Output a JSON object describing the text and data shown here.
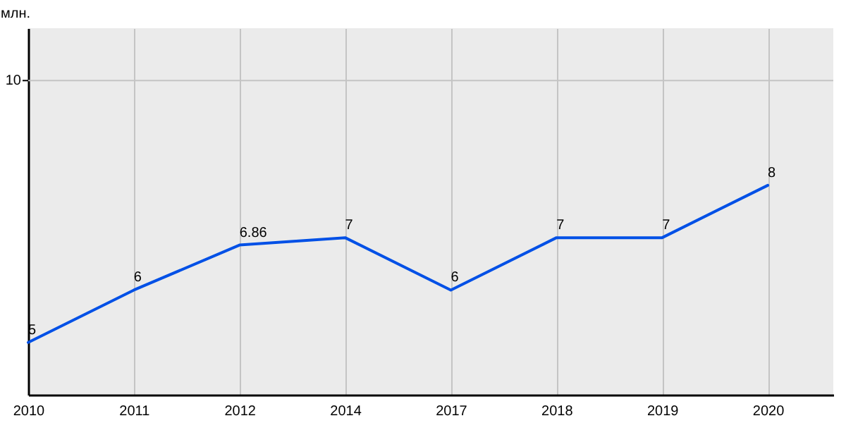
{
  "chart_data": {
    "type": "line",
    "ylabel": "млн.",
    "categories": [
      "2010",
      "2011",
      "2012",
      "2014",
      "2017",
      "2018",
      "2019",
      "2020"
    ],
    "series": [
      {
        "color": "#0050e6",
        "values": [
          5,
          6,
          6.86,
          7,
          6,
          7,
          7,
          8
        ]
      }
    ],
    "ylim": [
      4,
      11
    ],
    "grid": "x",
    "ref_lines": [
      {
        "axis": "y",
        "value": 10,
        "label": "10",
        "color": "#c4c4c4"
      }
    ],
    "data_labels": true,
    "marker": "none",
    "line_style": "solid"
  }
}
